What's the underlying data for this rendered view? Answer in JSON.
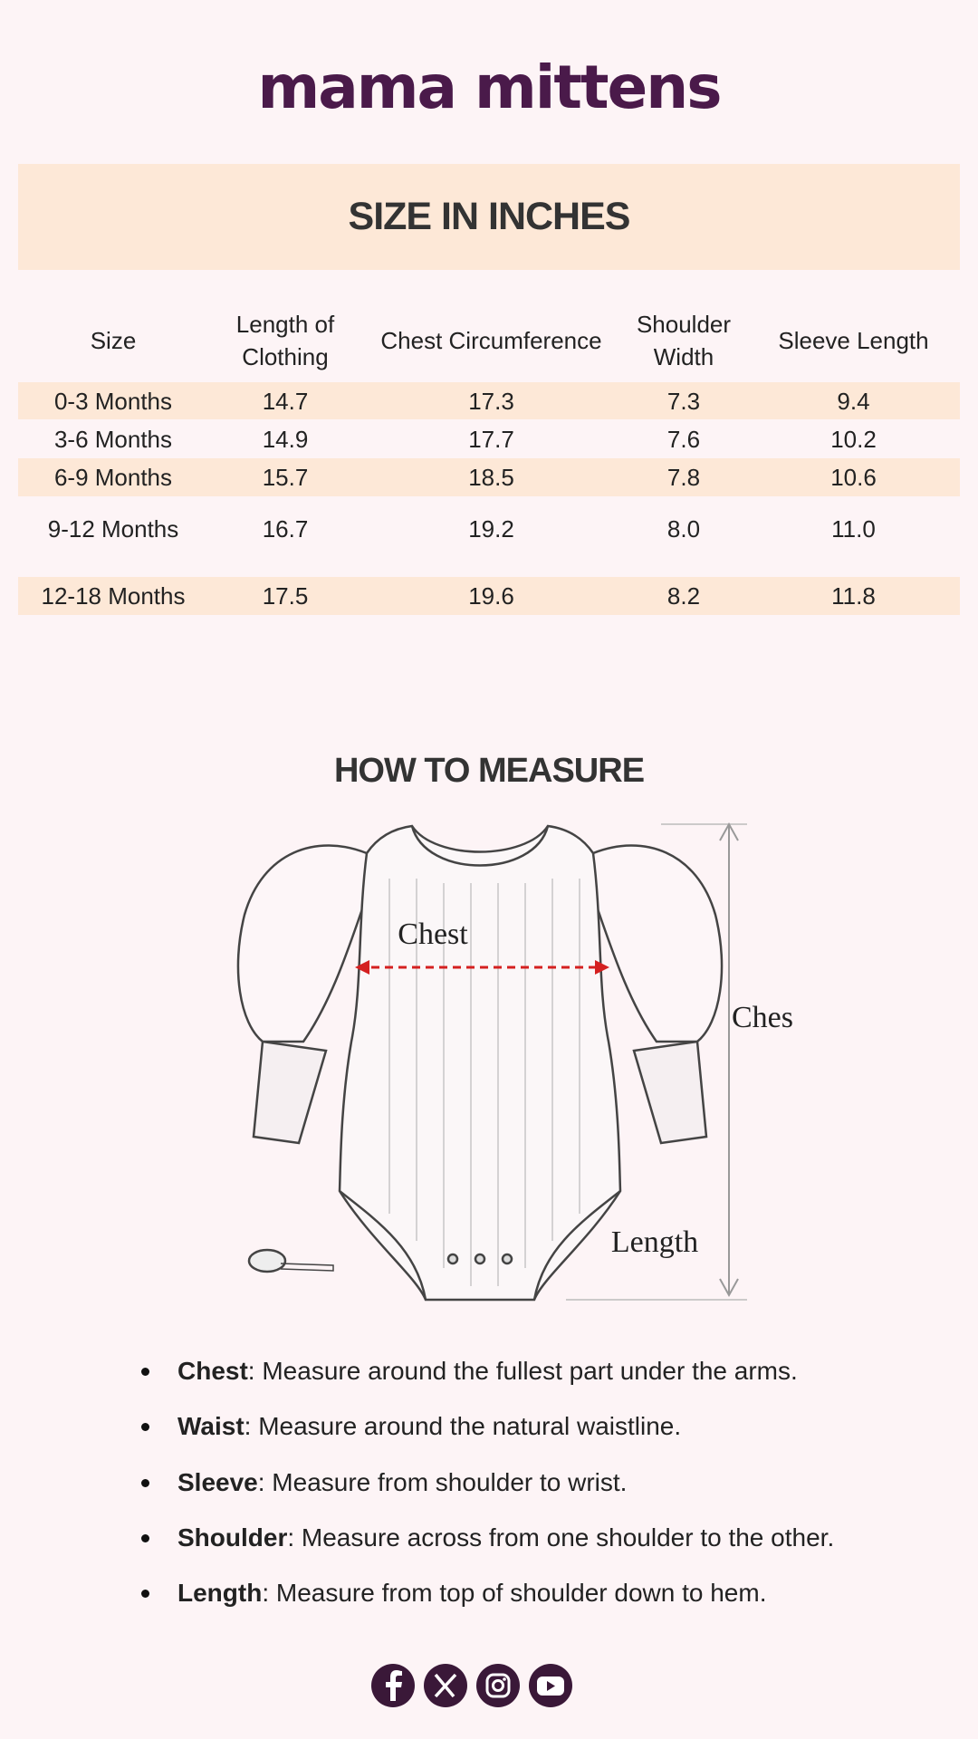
{
  "logo": "mama mittens",
  "size_chart": {
    "title": "SIZE IN INCHES",
    "columns": [
      "Size",
      "Length of Clothing",
      "Chest Circumference",
      "Shoulder Width",
      "Sleeve Length"
    ],
    "rows": [
      [
        "0-3 Months",
        "14.7",
        "17.3",
        "7.3",
        "9.4"
      ],
      [
        "3-6 Months",
        "14.9",
        "17.7",
        "7.6",
        "10.2"
      ],
      [
        "6-9 Months",
        "15.7",
        "18.5",
        "7.8",
        "10.6"
      ],
      [
        "9-12 Months",
        "16.7",
        "19.2",
        "8.0",
        "11.0"
      ],
      [
        "12-18 Months",
        "17.5",
        "19.6",
        "8.2",
        "11.8"
      ]
    ]
  },
  "how_to_measure": {
    "title": "HOW TO MEASURE",
    "diagram_labels": [
      "Chest",
      "Ches",
      "Length"
    ],
    "items": [
      {
        "term": "Chest",
        "text": ": Measure around the fullest part under the arms."
      },
      {
        "term": "Waist",
        "text": ": Measure around the natural waistline."
      },
      {
        "term": "Sleeve",
        "text": ": Measure from shoulder to wrist."
      },
      {
        "term": "Shoulder",
        "text": ": Measure across from one shoulder to the other."
      },
      {
        "term": "Length",
        "text": ": Measure from top of shoulder down to hem."
      }
    ]
  }
}
